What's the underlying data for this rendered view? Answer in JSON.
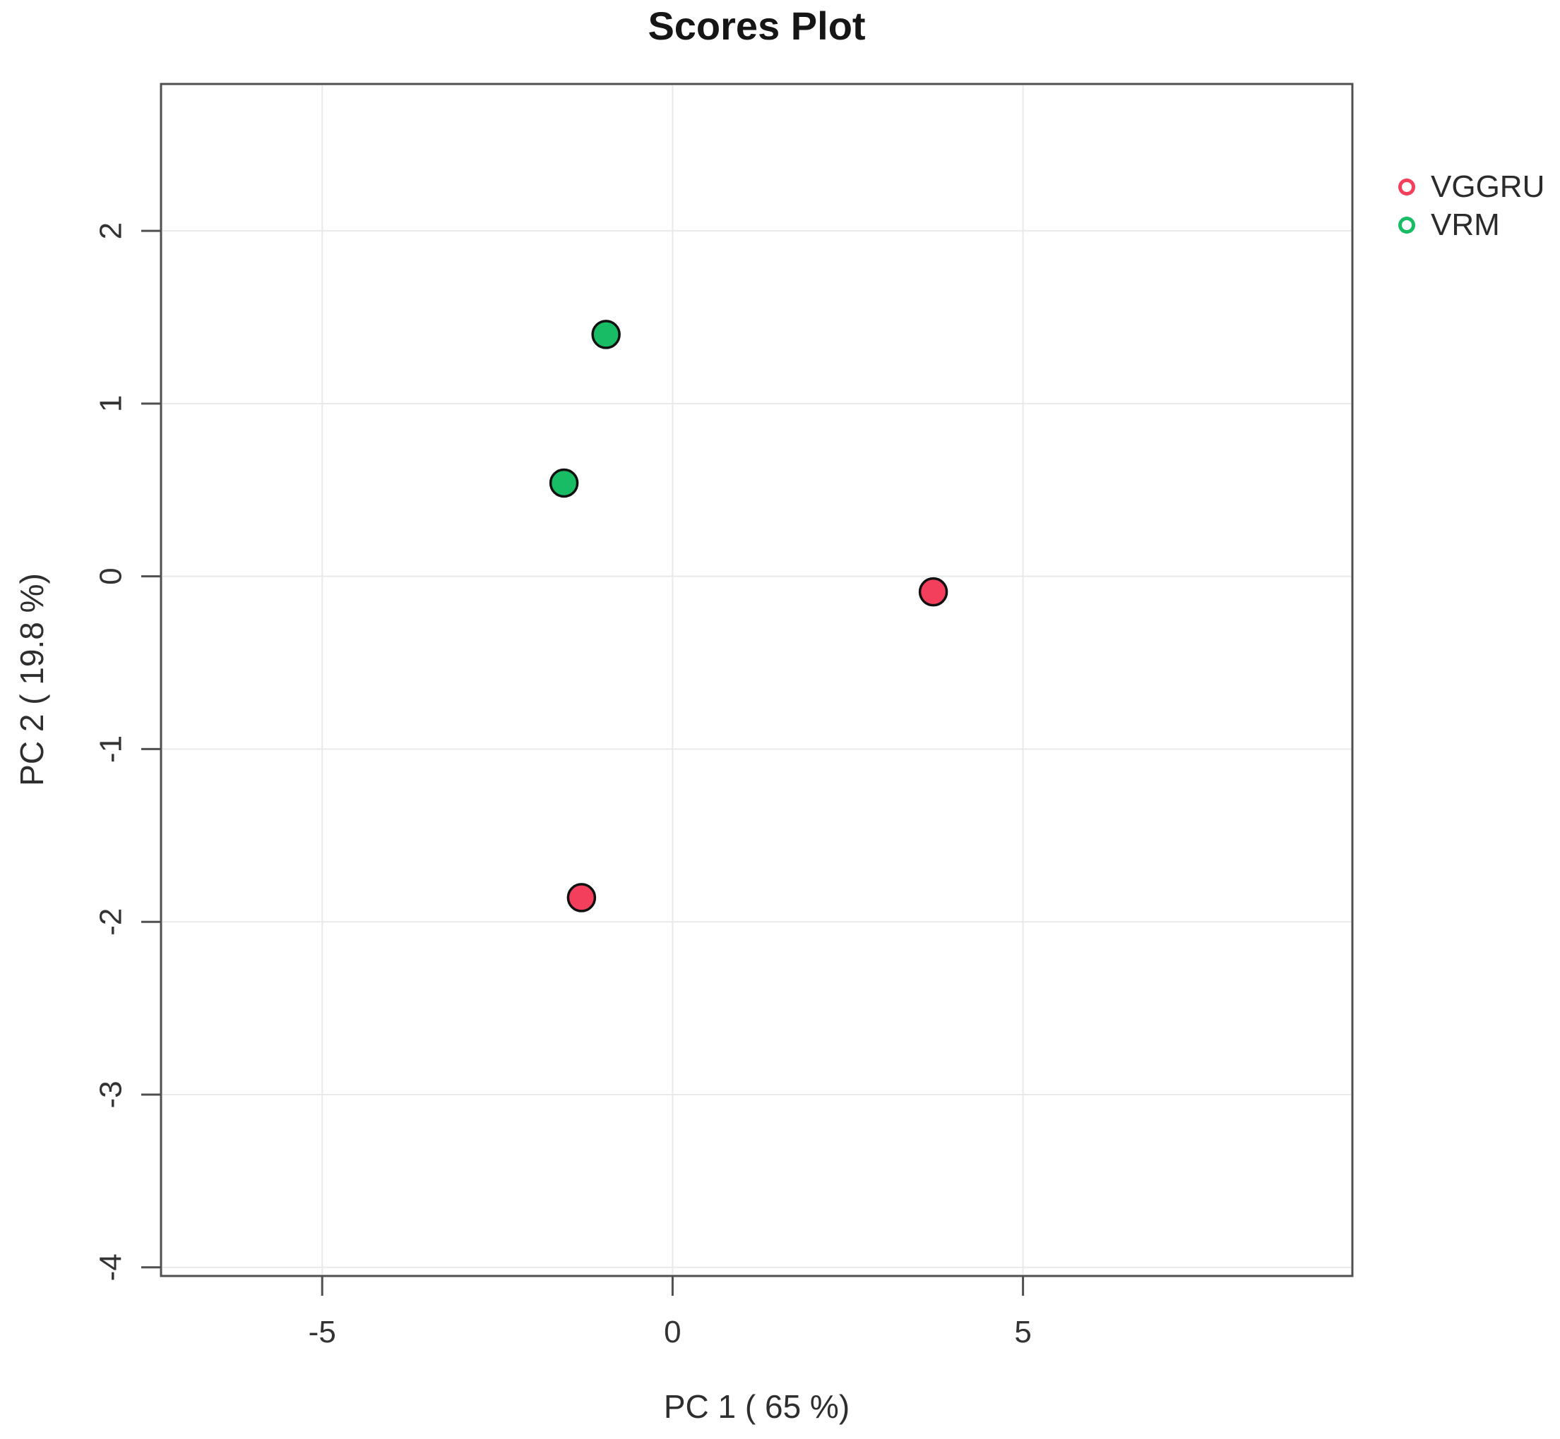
{
  "chart_data": {
    "type": "scatter",
    "title": "Scores Plot",
    "xlabel": "PC 1 ( 65 %)",
    "ylabel": "PC 2 ( 19.8 %)",
    "xlim": [
      -7.3,
      9.7
    ],
    "ylim": [
      -4.05,
      2.85
    ],
    "xticks": [
      -5,
      0,
      5
    ],
    "yticks": [
      -4,
      -3,
      -2,
      -1,
      0,
      1,
      2
    ],
    "grid": true,
    "legend_position": "right-outside",
    "point_style": "filled-circle-black-outline",
    "series": [
      {
        "name": "VGGRU",
        "color": "#f33e5c",
        "points": [
          {
            "x": 3.72,
            "y": -0.09
          },
          {
            "x": -1.3,
            "y": -1.86
          }
        ]
      },
      {
        "name": "VRM",
        "color": "#17bc65",
        "points": [
          {
            "x": -0.95,
            "y": 1.4
          },
          {
            "x": -1.55,
            "y": 0.54
          }
        ]
      }
    ],
    "colors": {
      "frame": "#4f4f4f",
      "gridline": "#e9e9e9",
      "tick_text": "#333333",
      "point_outline": "#111111"
    }
  }
}
